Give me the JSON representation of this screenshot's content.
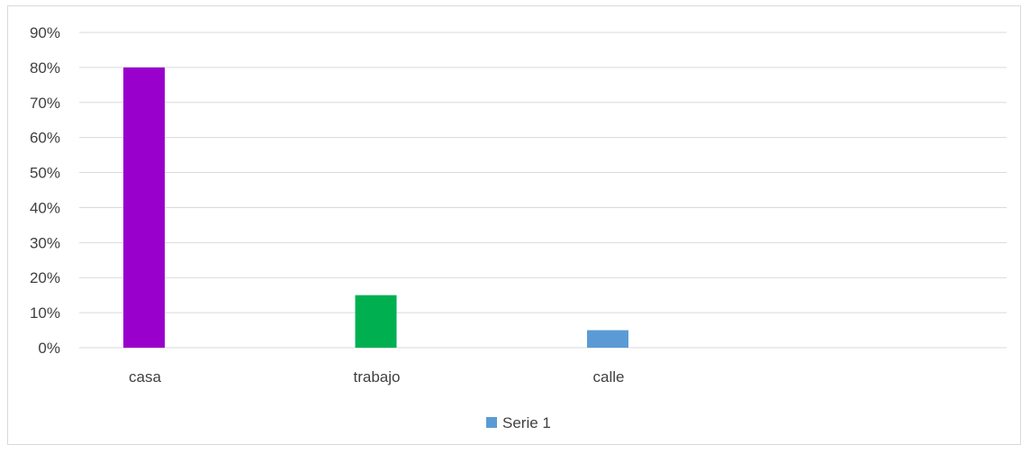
{
  "chart_data": {
    "type": "bar",
    "categories": [
      "casa",
      "trabajo",
      "calle",
      ""
    ],
    "series": [
      {
        "name": "Serie 1",
        "values": [
          80,
          15,
          5,
          null
        ],
        "colors": [
          "#9900cc",
          "#00b050",
          "#5b9bd5",
          null
        ]
      }
    ],
    "ylim": [
      0,
      90
    ],
    "yticks": [
      "0%",
      "10%",
      "20%",
      "30%",
      "40%",
      "50%",
      "60%",
      "70%",
      "80%",
      "90%"
    ],
    "grid": true,
    "legend_position": "bottom",
    "legend_color": "#5b9bd5",
    "title": "",
    "xlabel": "",
    "ylabel": ""
  }
}
